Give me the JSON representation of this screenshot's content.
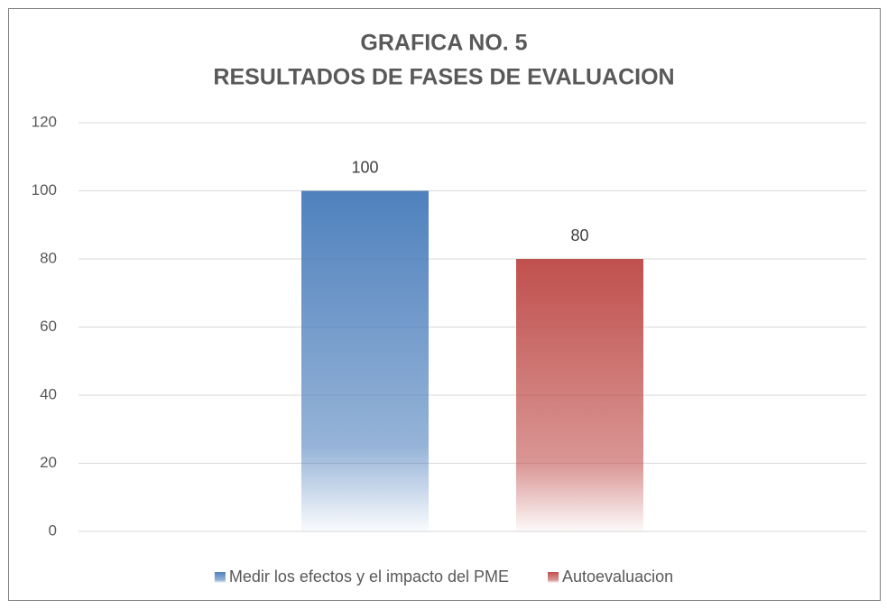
{
  "chart_data": {
    "type": "bar",
    "title": [
      "GRAFICA NO. 5",
      "RESULTADOS DE FASES DE EVALUACION"
    ],
    "categories": [
      null
    ],
    "series": [
      {
        "name": "Medir los efectos y el impacto del PME",
        "color": "#4f81bd",
        "values": [
          100
        ]
      },
      {
        "name": "Autoevaluacion",
        "color": "#c0504d",
        "values": [
          80
        ]
      }
    ],
    "ylim": [
      0,
      120
    ],
    "yticks": [
      0,
      20,
      40,
      60,
      80,
      100,
      120
    ],
    "grid": true,
    "data_labels": true,
    "legend": "bottom"
  }
}
